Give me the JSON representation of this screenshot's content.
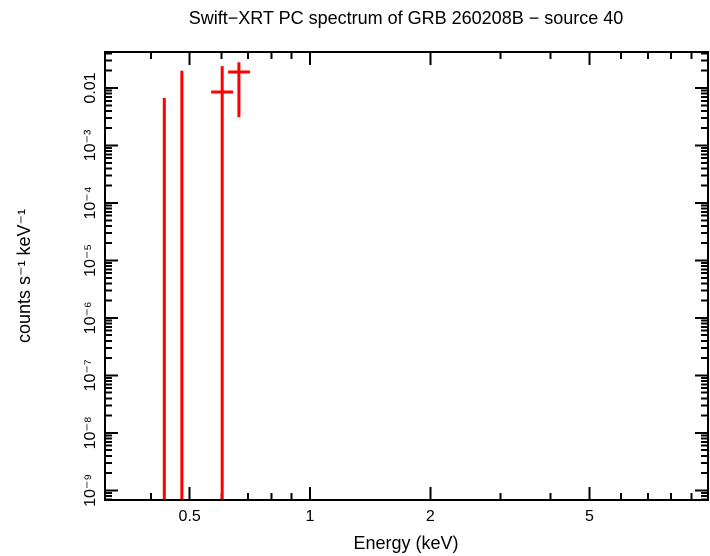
{
  "chart_data": {
    "type": "scatter",
    "title": "Swift−XRT PC spectrum of GRB 260208B − source 40",
    "xlabel": "Energy (keV)",
    "ylabel": "counts s⁻¹ keV⁻¹",
    "x_scale": "log",
    "y_scale": "log",
    "xlim": [
      0.307,
      9.9
    ],
    "ylim": [
      6.8e-10,
      0.0423
    ],
    "grid": false,
    "legend": "none",
    "background_color": "#ffffff",
    "axis_color": "#000000",
    "series_color": "#ff0000",
    "x_ticks": [
      {
        "v": 0.5,
        "label": "0.5"
      },
      {
        "v": 1,
        "label": "1"
      },
      {
        "v": 2,
        "label": "2"
      },
      {
        "v": 5,
        "label": "5"
      }
    ],
    "y_ticks": [
      {
        "v": 0.01,
        "label": "0.01"
      },
      {
        "v": 0.001,
        "label": "10⁻³"
      },
      {
        "v": 0.0001,
        "label": "10⁻⁴"
      },
      {
        "v": 1e-05,
        "label": "10⁻⁵"
      },
      {
        "v": 1e-06,
        "label": "10⁻⁶"
      },
      {
        "v": 1e-07,
        "label": "10⁻⁷"
      },
      {
        "v": 1e-08,
        "label": "10⁻⁸"
      },
      {
        "v": 1e-09,
        "label": "10⁻⁹"
      }
    ],
    "points": [
      {
        "x": 0.432,
        "x_lo": 0.432,
        "x_hi": 0.432,
        "y": null,
        "y_lo": 7e-10,
        "y_hi": 0.0067
      },
      {
        "x": 0.478,
        "x_lo": 0.478,
        "x_hi": 0.478,
        "y": null,
        "y_lo": 7e-10,
        "y_hi": 0.02
      },
      {
        "x": 0.603,
        "x_lo": 0.566,
        "x_hi": 0.642,
        "y": 0.0085,
        "y_lo": 7e-10,
        "y_hi": 0.024
      },
      {
        "x": 0.664,
        "x_lo": 0.624,
        "x_hi": 0.708,
        "y": 0.019,
        "y_lo": 0.0031,
        "y_hi": 0.028
      }
    ]
  }
}
